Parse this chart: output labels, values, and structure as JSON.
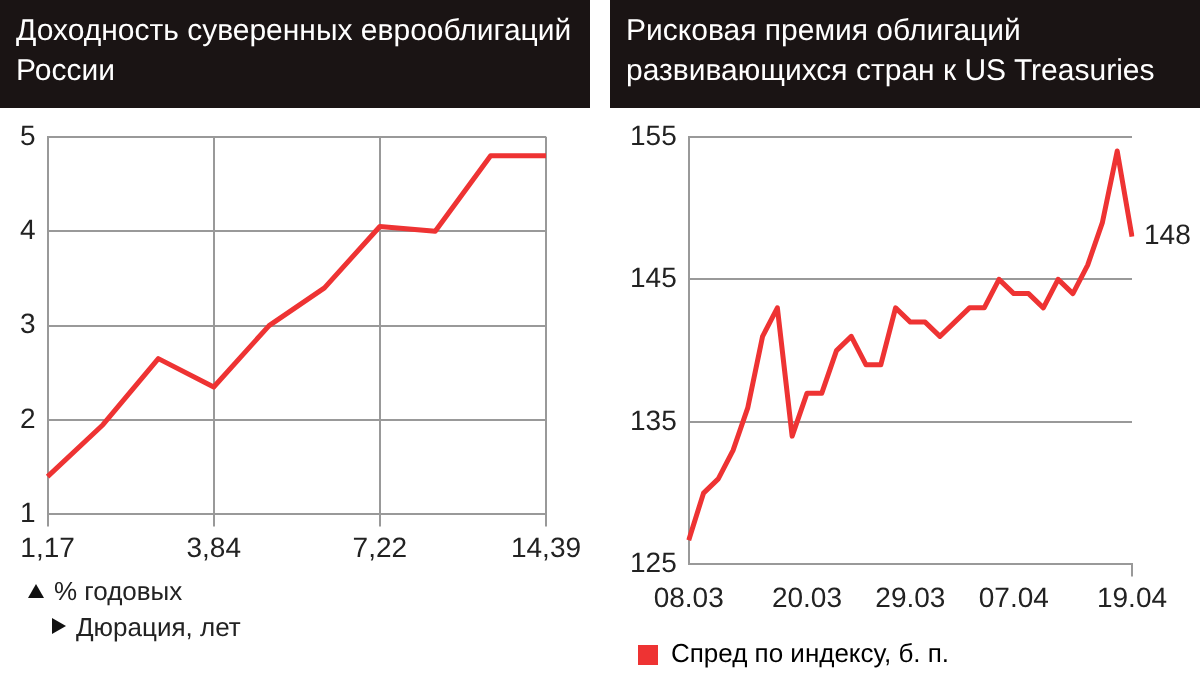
{
  "chart_data": [
    {
      "type": "line",
      "title": "Доходность суверенных еврооблигаций России",
      "annotations": [
        "% годовых",
        "Дюрация, лет"
      ],
      "categories": [
        "1,17",
        null,
        null,
        "3,84",
        null,
        null,
        "7,22",
        null,
        null,
        "14,39"
      ],
      "series": [
        {
          "color": "#ee3333",
          "values": [
            1.4,
            1.95,
            2.65,
            2.35,
            3.0,
            3.4,
            4.05,
            4.0,
            4.8,
            4.8
          ]
        }
      ],
      "ylim": [
        1,
        5
      ],
      "yticks": [
        1,
        2,
        3,
        4,
        5
      ],
      "grid": true,
      "legend": false,
      "marker": "none"
    },
    {
      "type": "line",
      "title": "Рисковая премия облигаций развивающихся стран к US Treasuries",
      "categories": [
        "08.03",
        null,
        null,
        null,
        null,
        null,
        null,
        null,
        "20.03",
        null,
        null,
        null,
        null,
        null,
        null,
        "29.03",
        null,
        null,
        null,
        null,
        null,
        null,
        "07.04",
        null,
        null,
        null,
        null,
        null,
        null,
        null,
        "19.04"
      ],
      "series": [
        {
          "name": "Спред по индексу, б. п.",
          "color": "#ee3333",
          "values": [
            126.7,
            130,
            131,
            133,
            136,
            141,
            143,
            134,
            137,
            137,
            140,
            141,
            139,
            139,
            143,
            142,
            142,
            141,
            142,
            143,
            143,
            145,
            144,
            144,
            143,
            145,
            144,
            146,
            149,
            154,
            148
          ],
          "value_labels": [
            null,
            null,
            null,
            null,
            null,
            null,
            null,
            null,
            null,
            null,
            null,
            null,
            null,
            null,
            null,
            null,
            null,
            null,
            null,
            null,
            null,
            null,
            null,
            null,
            null,
            null,
            null,
            null,
            null,
            null,
            "148"
          ]
        }
      ],
      "ylim": [
        125,
        155
      ],
      "yticks": [
        125,
        135,
        145,
        155
      ],
      "grid": "y",
      "legend": "bottom",
      "marker": "none"
    }
  ]
}
